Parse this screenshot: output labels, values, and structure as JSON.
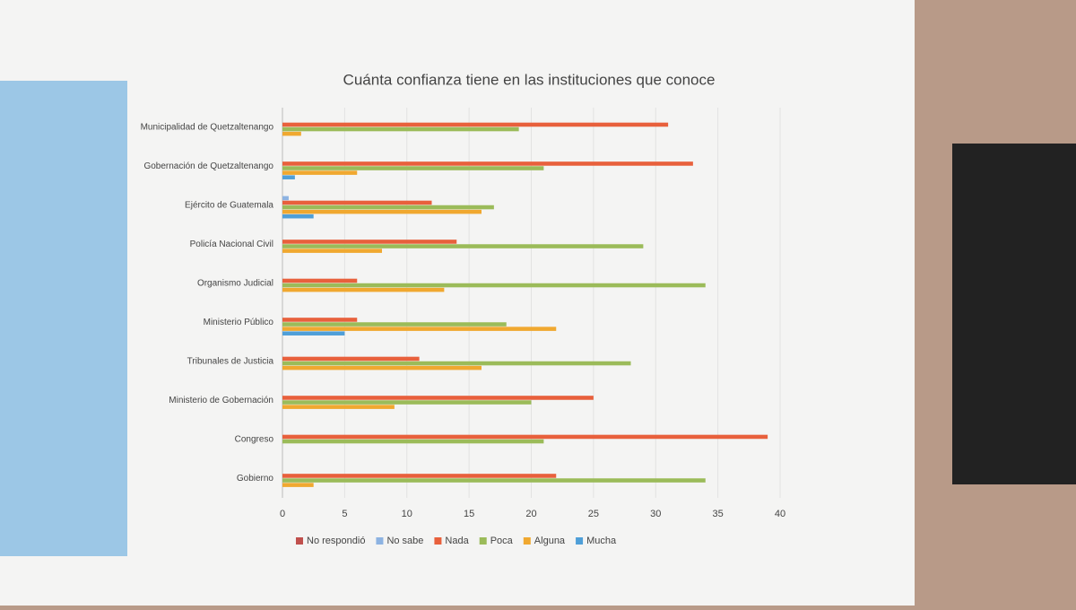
{
  "chart_data": {
    "type": "bar",
    "orientation": "horizontal",
    "title": "Cuánta confianza tiene en las instituciones que conoce",
    "categories": [
      "Municipalidad de Quetzaltenango",
      "Gobernación de Quetzaltenango",
      "Ejército de Guatemala",
      "Policía Nacional Civil",
      "Organismo Judicial",
      "Ministerio Público",
      "Tribunales de Justicia",
      "Ministerio de Gobernación",
      "Congreso",
      "Gobierno"
    ],
    "series": [
      {
        "name": "No respondió",
        "color": "#c0504d",
        "values": [
          0,
          0,
          0,
          0,
          0,
          0,
          0,
          0,
          0,
          0
        ]
      },
      {
        "name": "No sabe",
        "color": "#8db3e2",
        "values": [
          0,
          0,
          0.5,
          0,
          0,
          0,
          0,
          0,
          0,
          0
        ]
      },
      {
        "name": "Nada",
        "color": "#e8603c",
        "values": [
          31,
          33,
          12,
          14,
          6,
          6,
          11,
          25,
          39,
          22
        ]
      },
      {
        "name": "Poca",
        "color": "#9bbb59",
        "values": [
          19,
          21,
          17,
          29,
          34,
          18,
          28,
          20,
          21,
          34
        ]
      },
      {
        "name": "Alguna",
        "color": "#f0a830",
        "values": [
          1.5,
          6,
          16,
          8,
          13,
          22,
          16,
          9,
          0,
          2.5
        ]
      },
      {
        "name": "Mucha",
        "color": "#4f9fd8",
        "values": [
          0,
          1,
          2.5,
          0,
          0,
          5,
          0,
          0,
          0,
          0
        ]
      }
    ],
    "xlim": [
      0,
      40
    ],
    "xticks": [
      0,
      5,
      10,
      15,
      20,
      25,
      30,
      35,
      40
    ],
    "grid": true,
    "legend": "bottom"
  }
}
